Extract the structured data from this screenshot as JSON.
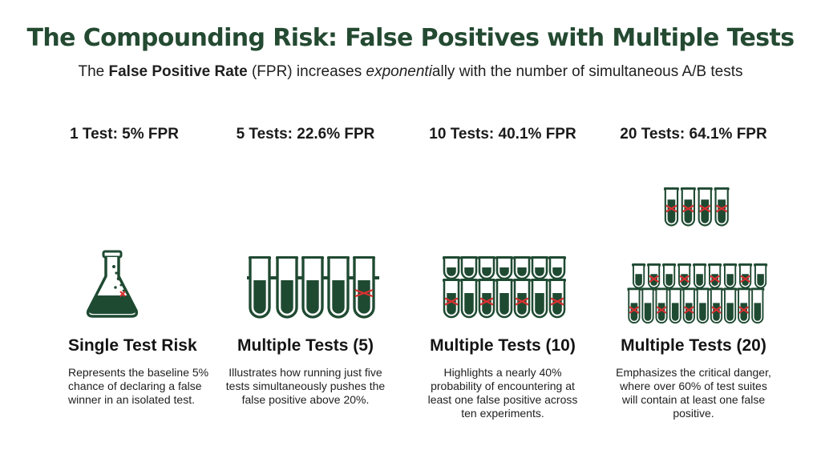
{
  "header": {
    "title": "The Compounding Risk: False Positives with Multiple Tests",
    "subtitle_pre": "The ",
    "subtitle_bold": "False Positive Rate",
    "subtitle_mid": " (FPR) increases ",
    "subtitle_italic": "exponenti",
    "subtitle_post": "ally with the number of simultaneous A/B tests"
  },
  "columns": [
    {
      "heading": "1 Test: 5% FPR",
      "tests": 1,
      "fpr_percent": 5,
      "title": "Single Test Risk",
      "description": "Represents the baseline 5% chance of declaring a false winner in an isolated test.",
      "icon": "flask-icon"
    },
    {
      "heading": "5 Tests: 22.6% FPR",
      "tests": 5,
      "fpr_percent": 22.6,
      "title": "Multiple Tests (5)",
      "description": "Illustrates how running just five tests simultaneously pushes the false positive above 20%.",
      "icon": "test-tube-icon"
    },
    {
      "heading": "10 Tests: 40.1% FPR",
      "tests": 10,
      "fpr_percent": 40.1,
      "title": "Multiple Tests (10)",
      "description": "Highlights a nearly 40% probability of encountering at least one false positive across ten experiments.",
      "icon": "test-tube-icon"
    },
    {
      "heading": "20 Tests: 64.1% FPR",
      "tests": 20,
      "fpr_percent": 64.1,
      "title": "Multiple Tests (20)",
      "description": "Emphasizes the critical danger, where over 60% of test suites will contain at least one false positive.",
      "icon": "test-tube-icon"
    }
  ],
  "colors": {
    "title": "#244a32",
    "liquid": "#1f4a32",
    "outline": "#1f4a32",
    "marker": "#d93030"
  }
}
